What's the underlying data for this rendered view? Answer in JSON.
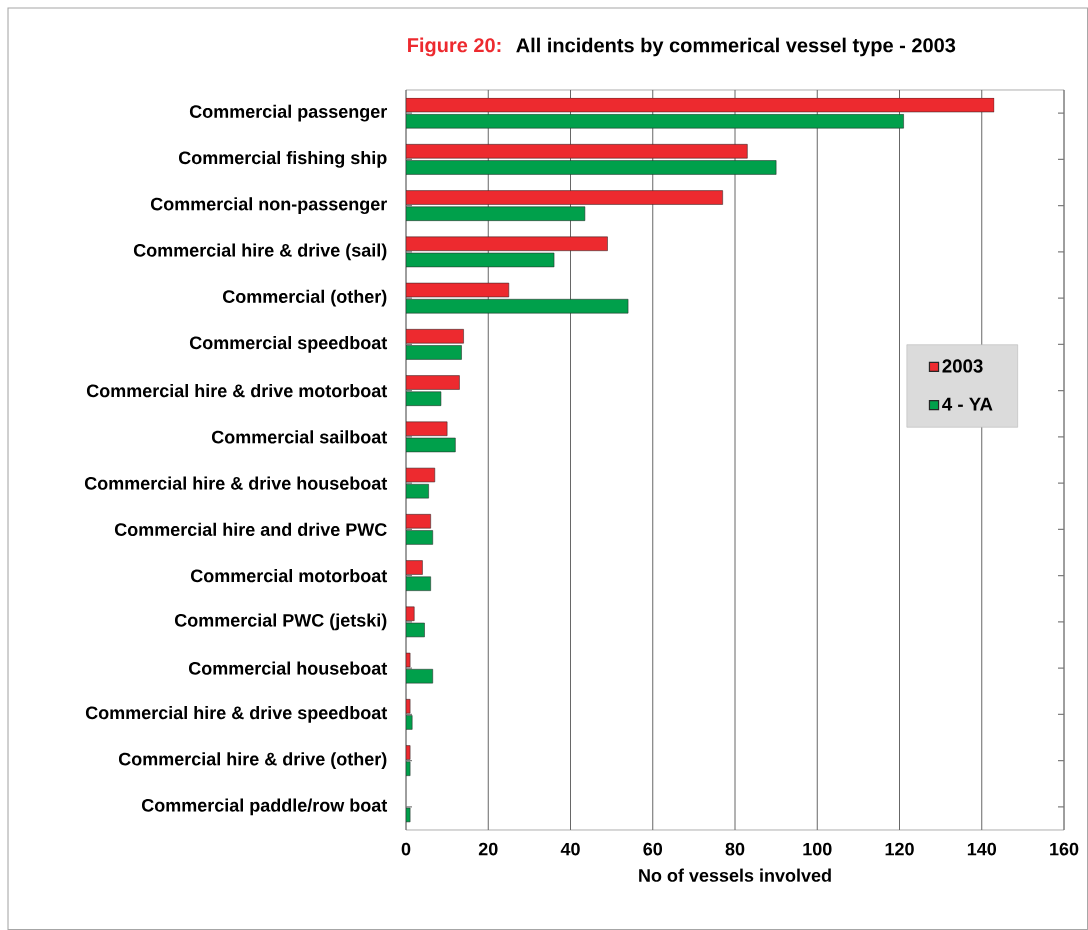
{
  "chart_data": {
    "type": "bar",
    "orientation": "horizontal",
    "title": "Figure 20:",
    "subtitle": "All incidents by commerical vessel type - 2003",
    "xlabel": "No of vessels involved",
    "categories": [
      "Commercial passenger",
      "Commercial fishing ship",
      "Commercial non-passenger",
      "Commercial hire & drive (sail)",
      "Commercial (other)",
      "Commercial speedboat",
      "Commercial hire & drive motorboat",
      "Commercial sailboat",
      "Commercial hire & drive houseboat",
      "Commercial hire and drive PWC",
      "Commercial motorboat",
      "Commercial PWC (jetski)",
      "Commercial houseboat",
      "Commercial hire & drive speedboat",
      "Commercial hire & drive (other)",
      "Commercial paddle/row boat"
    ],
    "series": [
      {
        "name": "2003",
        "color": "#ed2a2f",
        "values": [
          143,
          83,
          77,
          49,
          25,
          14,
          13,
          10,
          7,
          6,
          4,
          2,
          1,
          1,
          1,
          null
        ]
      },
      {
        "name": "4 - YA",
        "color": "#00a04b",
        "values": [
          121,
          90,
          43.5,
          36,
          54,
          13.5,
          8.5,
          12,
          5.5,
          6.5,
          6,
          4.5,
          6.5,
          1.5,
          1,
          1
        ]
      }
    ],
    "xlim": [
      0,
      160
    ],
    "xticks": [
      0,
      20,
      40,
      60,
      80,
      100,
      120,
      140,
      160
    ],
    "grid": "x",
    "legend": "right"
  }
}
